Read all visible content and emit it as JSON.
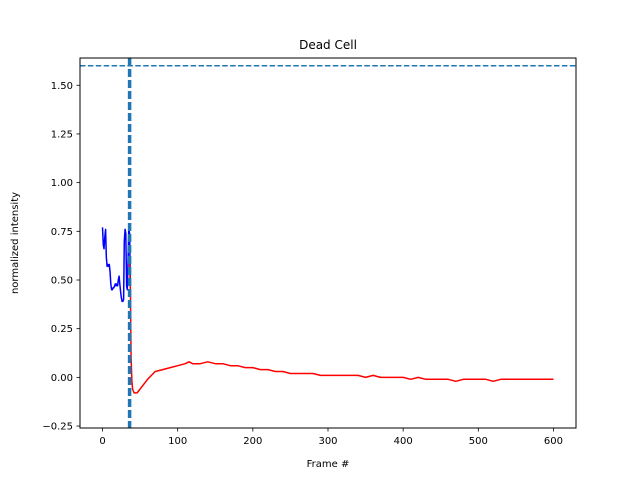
{
  "chart_data": {
    "type": "line",
    "title": "Dead Cell",
    "xlabel": "Frame #",
    "ylabel": "normalized intensity",
    "xlim": [
      -30,
      630
    ],
    "ylim": [
      -0.26,
      1.64
    ],
    "x_ticks": [
      0,
      100,
      200,
      300,
      400,
      500,
      600
    ],
    "y_ticks": [
      -0.25,
      0.0,
      0.25,
      0.5,
      0.75,
      1.0,
      1.25,
      1.5
    ],
    "x_tick_labels": [
      "0",
      "100",
      "200",
      "300",
      "400",
      "500",
      "600"
    ],
    "y_tick_labels": [
      "−0.25",
      "0.00",
      "0.25",
      "0.50",
      "0.75",
      "1.00",
      "1.25",
      "1.50"
    ],
    "grid": false,
    "series": [
      {
        "color": "#0000ff",
        "style": "solid",
        "x": [
          0,
          1,
          2,
          3,
          4,
          5,
          6,
          7,
          8,
          9,
          10,
          11,
          12,
          13,
          14,
          15,
          16,
          17,
          18,
          19,
          20,
          21,
          22,
          23,
          24,
          25,
          26,
          27,
          28,
          29,
          30,
          31,
          32,
          33,
          34,
          35,
          36,
          37
        ],
        "values": [
          0.77,
          0.68,
          0.66,
          0.72,
          0.76,
          0.62,
          0.57,
          0.58,
          0.57,
          0.58,
          0.54,
          0.48,
          0.45,
          0.45,
          0.46,
          0.46,
          0.47,
          0.48,
          0.47,
          0.48,
          0.47,
          0.5,
          0.52,
          0.48,
          0.44,
          0.41,
          0.39,
          0.39,
          0.4,
          0.7,
          0.76,
          0.74,
          0.47,
          0.45,
          0.61,
          0.76,
          0.74,
          0.47
        ]
      },
      {
        "color": "#ff0000",
        "style": "solid",
        "x": [
          36,
          37,
          38,
          39,
          40,
          42,
          44,
          46,
          48,
          52,
          56,
          60,
          65,
          70,
          80,
          90,
          100,
          110,
          115,
          120,
          130,
          140,
          150,
          160,
          170,
          180,
          190,
          200,
          210,
          220,
          230,
          240,
          250,
          260,
          270,
          280,
          290,
          300,
          310,
          320,
          330,
          340,
          350,
          360,
          370,
          380,
          390,
          400,
          410,
          420,
          430,
          440,
          450,
          460,
          470,
          480,
          490,
          500,
          510,
          520,
          530,
          540,
          550,
          560,
          570,
          580,
          590,
          600
        ],
        "values": [
          0.58,
          0.45,
          0.1,
          -0.02,
          -0.06,
          -0.08,
          -0.08,
          -0.08,
          -0.07,
          -0.05,
          -0.03,
          -0.01,
          0.01,
          0.03,
          0.04,
          0.05,
          0.06,
          0.07,
          0.08,
          0.07,
          0.07,
          0.08,
          0.07,
          0.07,
          0.06,
          0.06,
          0.05,
          0.05,
          0.04,
          0.04,
          0.03,
          0.03,
          0.02,
          0.02,
          0.02,
          0.02,
          0.01,
          0.01,
          0.01,
          0.01,
          0.01,
          0.01,
          0.0,
          0.01,
          0.0,
          0.0,
          0.0,
          0.0,
          -0.01,
          0.0,
          -0.01,
          -0.01,
          -0.01,
          -0.01,
          -0.02,
          -0.01,
          -0.01,
          -0.01,
          -0.01,
          -0.02,
          -0.01,
          -0.01,
          -0.01,
          -0.01,
          -0.01,
          -0.01,
          -0.01,
          -0.01
        ]
      }
    ],
    "reference_lines": [
      {
        "orientation": "horizontal",
        "y": 1.6,
        "color": "#1f77b4",
        "style": "dashed"
      },
      {
        "orientation": "vertical",
        "x": 36,
        "color": "#1f77b4",
        "style": "dashed"
      }
    ]
  }
}
